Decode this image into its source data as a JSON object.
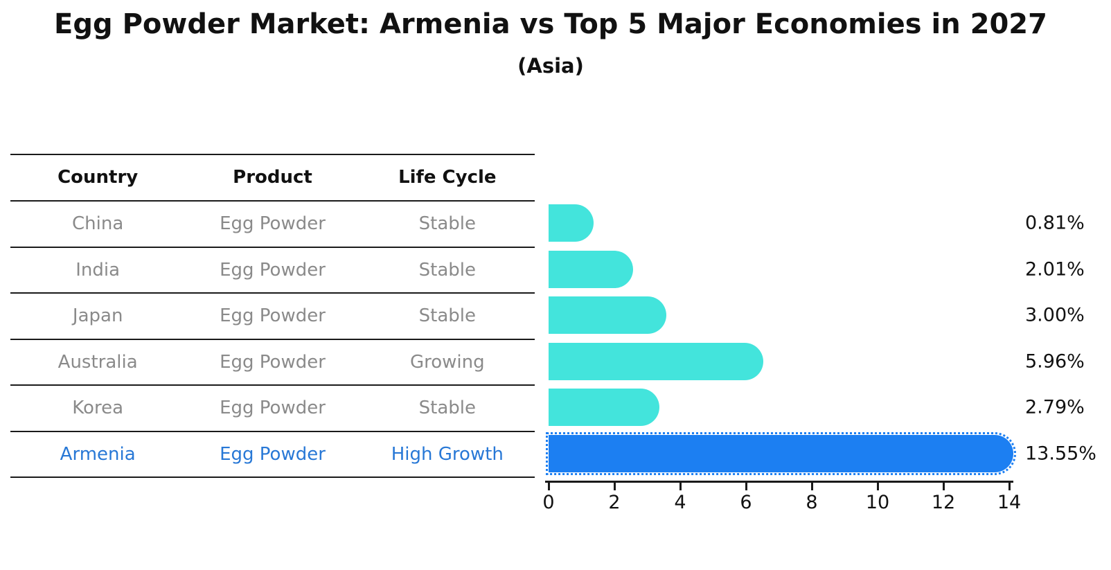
{
  "title": "Egg Powder Market: Armenia vs Top 5 Major Economies in 2027",
  "subtitle": "(Asia)",
  "table": {
    "headers": [
      "Country",
      "Product",
      "Life Cycle"
    ],
    "rows": [
      {
        "country": "China",
        "product": "Egg Powder",
        "life_cycle": "Stable"
      },
      {
        "country": "India",
        "product": "Egg Powder",
        "life_cycle": "Stable"
      },
      {
        "country": "Japan",
        "product": "Egg Powder",
        "life_cycle": "Stable"
      },
      {
        "country": "Australia",
        "product": "Egg Powder",
        "life_cycle": "Growing"
      },
      {
        "country": "Korea",
        "product": "Egg Powder",
        "life_cycle": "Stable"
      },
      {
        "country": "Armenia",
        "product": "Egg Powder",
        "life_cycle": "High Growth"
      }
    ],
    "highlight_row": 5
  },
  "chart_data": {
    "type": "bar",
    "orientation": "horizontal",
    "title": "Egg Powder Market: Armenia vs Top 5 Major Economies in 2027",
    "subtitle": "(Asia)",
    "categories": [
      "China",
      "India",
      "Japan",
      "Australia",
      "Korea",
      "Armenia"
    ],
    "values": [
      0.81,
      2.01,
      3.0,
      5.96,
      2.79,
      13.55
    ],
    "value_labels": [
      "0.81%",
      "2.01%",
      "3.00%",
      "5.96%",
      "2.79%",
      "13.55%"
    ],
    "x_ticks": [
      0,
      2,
      4,
      6,
      8,
      10,
      12,
      14
    ],
    "xlim": [
      0,
      14.6
    ],
    "grid": false,
    "legend": false,
    "bar_color": "#43e4dc",
    "highlight_color": "#1c7ff2",
    "highlight_index": 5
  },
  "colors": {
    "background": "#ffffff",
    "text": "#111111",
    "muted_text": "#8a8a8a",
    "highlight_text": "#2878d6",
    "line": "#1a1a1a"
  }
}
